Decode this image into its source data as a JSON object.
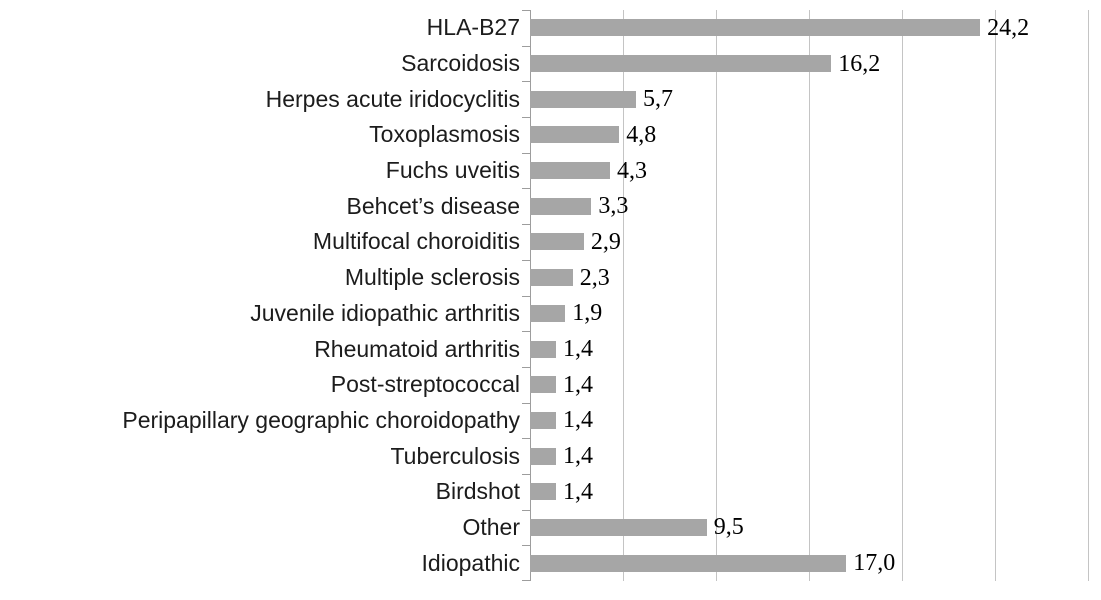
{
  "chart_data": {
    "type": "bar",
    "orientation": "horizontal",
    "title": "",
    "xlabel": "",
    "ylabel": "",
    "categories": [
      "HLA-B27",
      "Sarcoidosis",
      "Herpes acute iridocyclitis",
      "Toxoplasmosis",
      "Fuchs uveitis",
      "Behcet’s disease",
      "Multifocal choroiditis",
      "Multiple sclerosis",
      "Juvenile idiopathic arthritis",
      "Rheumatoid arthritis",
      "Post-streptococcal",
      "Peripapillary geographic choroidopathy",
      "Tuberculosis",
      "Birdshot",
      "Other",
      "Idiopathic"
    ],
    "values": [
      24.2,
      16.2,
      5.7,
      4.8,
      4.3,
      3.3,
      2.9,
      2.3,
      1.9,
      1.4,
      1.4,
      1.4,
      1.4,
      1.4,
      9.5,
      17.0
    ],
    "value_labels": [
      "24,2",
      "16,2",
      "5,7",
      "4,8",
      "4,3",
      "3,3",
      "2,9",
      "2,3",
      "1,9",
      "1,4",
      "1,4",
      "1,4",
      "1,4",
      "1,4",
      "9,5",
      "17,0"
    ],
    "xlim": [
      0,
      30
    ],
    "grid_step": 5,
    "grid": true,
    "legend": false,
    "x_tick_labels_visible": false,
    "bar_color": "#a6a6a6",
    "gridline_color": "#c4c4c4",
    "axis_color": "#9d9d9d"
  }
}
